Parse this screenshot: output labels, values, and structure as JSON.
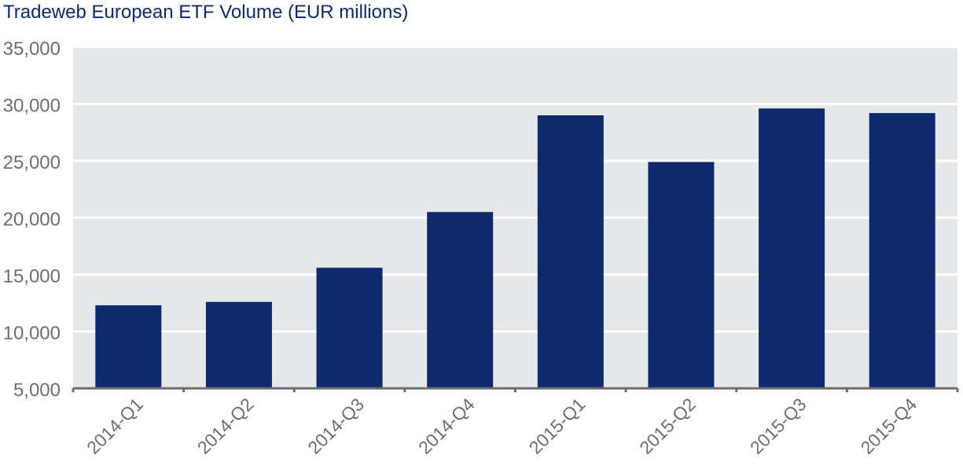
{
  "chart_data": {
    "type": "bar",
    "title": "Tradeweb European ETF Volume (EUR millions)",
    "categories": [
      "2014-Q1",
      "2014-Q2",
      "2014-Q3",
      "2014-Q4",
      "2015-Q1",
      "2015-Q2",
      "2015-Q3",
      "2015-Q4"
    ],
    "series": [
      {
        "values": [
          12300,
          12600,
          15600,
          20500,
          29000,
          24900,
          29600,
          29200
        ]
      }
    ],
    "xlabel": "",
    "ylabel": "",
    "ylim": [
      5000,
      35000
    ],
    "yticks": [
      5000,
      10000,
      15000,
      20000,
      25000,
      30000,
      35000
    ],
    "ytick_labels": [
      "5,000",
      "10,000",
      "15,000",
      "20,000",
      "25,000",
      "30,000",
      "35,000"
    ],
    "grid": true,
    "colors": {
      "bar": "#0f2a6b",
      "plot_background": "#e6e7e9",
      "gridline": "#ffffff",
      "axis": "#6d6e71",
      "tick_label": "#6d6e71"
    }
  }
}
